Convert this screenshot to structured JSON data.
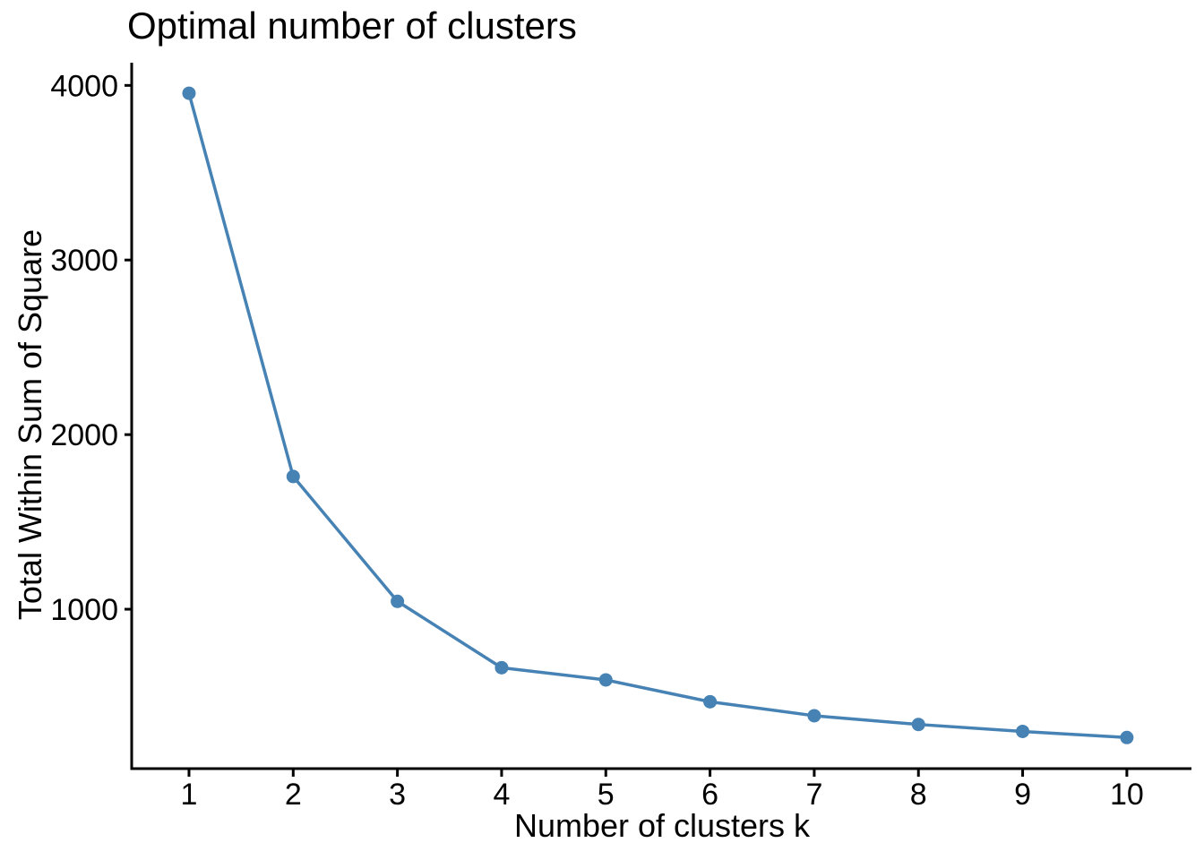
{
  "chart_data": {
    "type": "line",
    "title": "Optimal number of clusters",
    "xlabel": "Number of clusters k",
    "ylabel": "Total Within Sum of Square",
    "x": [
      1,
      2,
      3,
      4,
      5,
      6,
      7,
      8,
      9,
      10
    ],
    "values": [
      3955,
      1760,
      1045,
      665,
      595,
      470,
      390,
      340,
      300,
      265
    ],
    "xtick_labels": [
      "1",
      "2",
      "3",
      "4",
      "5",
      "6",
      "7",
      "8",
      "9",
      "10"
    ],
    "xtick_values": [
      1,
      2,
      3,
      4,
      5,
      6,
      7,
      8,
      9,
      10
    ],
    "ytick_labels": [
      "1000",
      "2000",
      "3000",
      "4000"
    ],
    "ytick_values": [
      1000,
      2000,
      3000,
      4000
    ],
    "xlim": [
      0.45,
      10.62
    ],
    "ylim": [
      87,
      4130
    ],
    "grid": false,
    "legend": "none",
    "line_color": "#4682B4",
    "marker_color": "#4682B4",
    "marker_shape": "circle",
    "axis_color": "#000000",
    "text_color": "#000000"
  }
}
